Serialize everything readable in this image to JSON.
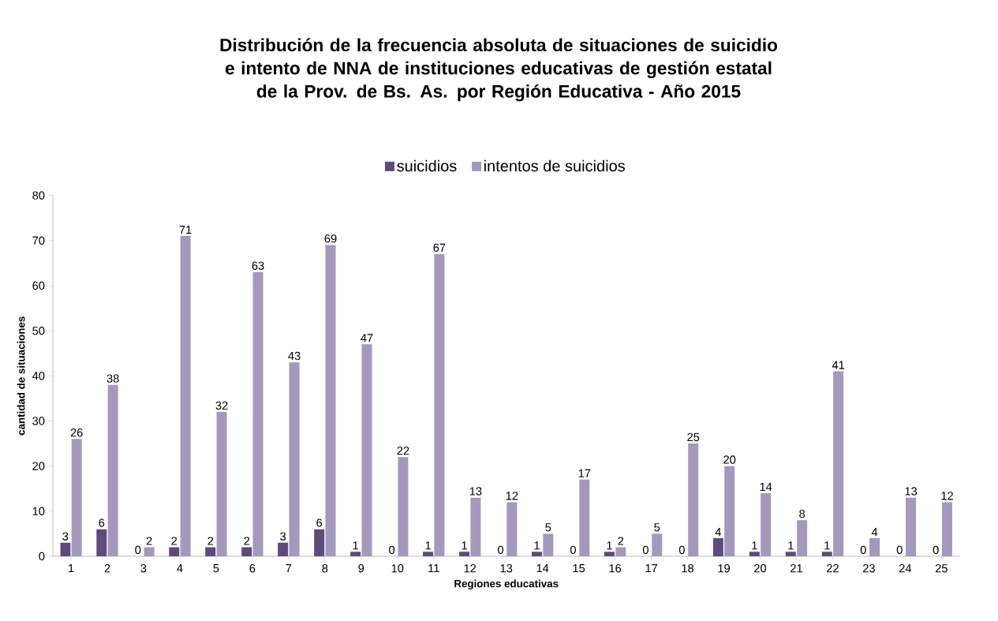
{
  "chart_data": {
    "type": "bar",
    "title": "Distribución de la frecuencia absoluta de situaciones de suicidio e intento de NNA de instituciones educativas de gestión estatal de la Prov. de Bs. As. por Región Educativa -  Año 2015",
    "xlabel": "Regiones educativas",
    "ylabel": "cantidad de situaciones",
    "categories": [
      "1",
      "2",
      "3",
      "4",
      "5",
      "6",
      "7",
      "8",
      "9",
      "10",
      "11",
      "12",
      "13",
      "14",
      "15",
      "16",
      "17",
      "18",
      "19",
      "20",
      "21",
      "22",
      "23",
      "24",
      "25"
    ],
    "series": [
      {
        "name": "suicidios",
        "color": "#604a7b",
        "values": [
          3,
          6,
          0,
          2,
          2,
          2,
          3,
          6,
          1,
          0,
          1,
          1,
          0,
          1,
          0,
          1,
          0,
          0,
          4,
          1,
          1,
          1,
          0,
          0,
          0
        ]
      },
      {
        "name": "intentos de suicidios",
        "color": "#a598bd",
        "values": [
          26,
          38,
          2,
          71,
          32,
          63,
          43,
          69,
          47,
          22,
          67,
          13,
          12,
          5,
          17,
          2,
          5,
          25,
          20,
          14,
          8,
          41,
          4,
          13,
          12
        ]
      }
    ],
    "ylim": [
      0,
      80
    ],
    "yticks": [
      0,
      10,
      20,
      30,
      40,
      50,
      60,
      70,
      80
    ],
    "grid": false,
    "legend": "top",
    "data_labels": true
  }
}
